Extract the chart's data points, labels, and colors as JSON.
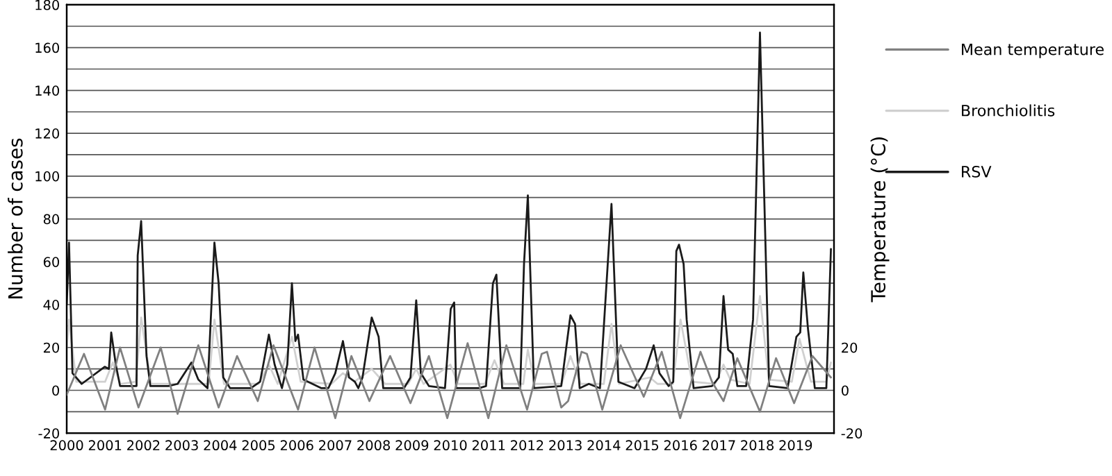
{
  "chart_data": {
    "type": "line",
    "ylabel": "Number of cases",
    "y2label": "Temperature (°C)",
    "xlim": [
      2000,
      2020
    ],
    "xticks": [
      2000,
      2001,
      2002,
      2003,
      2004,
      2005,
      2006,
      2007,
      2008,
      2009,
      2010,
      2011,
      2012,
      2013,
      2014,
      2015,
      2016,
      2017,
      2018,
      2019
    ],
    "ylim": [
      -20,
      180
    ],
    "yticks": [
      -20,
      0,
      20,
      40,
      60,
      80,
      100,
      120,
      140,
      160,
      180
    ],
    "y2lim": [
      -20,
      180
    ],
    "y2ticks": [
      -20,
      0,
      20
    ],
    "grid": "y",
    "legend": "right",
    "marker": "none",
    "line_style": "solid",
    "series": [
      {
        "name": "Mean temperature",
        "color": "#808080",
        "axis": "y2",
        "x": [
          2000.0,
          2000.45,
          2001.0,
          2001.39,
          2001.87,
          2002.45,
          2002.89,
          2003.43,
          2003.96,
          2004.44,
          2004.98,
          2005.39,
          2006.03,
          2006.46,
          2007.0,
          2007.42,
          2007.89,
          2008.43,
          2008.96,
          2009.44,
          2009.92,
          2010.45,
          2010.99,
          2011.46,
          2012.0,
          2012.38,
          2012.52,
          2012.89,
          2013.07,
          2013.42,
          2013.56,
          2013.96,
          2014.44,
          2015.04,
          2015.51,
          2015.99,
          2016.52,
          2016.82,
          2017.12,
          2017.48,
          2018.07,
          2018.49,
          2018.96,
          2019.44,
          2019.92
        ],
        "values": [
          -2,
          17,
          -9,
          20,
          -8,
          20,
          -11,
          21,
          -8,
          16,
          -5,
          21,
          -9,
          20,
          -13,
          16,
          -5,
          16,
          -6,
          16,
          -13,
          22,
          -13,
          21,
          -9,
          17,
          18,
          -8,
          -5,
          18,
          17,
          -9,
          21,
          -3,
          18,
          -13,
          18,
          4,
          -5,
          15,
          -10,
          15,
          -6,
          16,
          6
        ]
      },
      {
        "name": "Bronchiolitis",
        "color": "#d0d0d0",
        "x": [
          2000.0,
          2000.06,
          2000.25,
          2001.0,
          2001.2,
          2001.4,
          2001.8,
          2001.94,
          2002.2,
          2003.7,
          2003.85,
          2004.1,
          2005.0,
          2005.27,
          2005.5,
          2005.87,
          2006.1,
          2006.9,
          2007.2,
          2007.5,
          2007.95,
          2008.3,
          2008.9,
          2009.11,
          2009.3,
          2010.0,
          2010.2,
          2010.9,
          2011.15,
          2011.4,
          2011.9,
          2012.02,
          2012.2,
          2012.9,
          2013.13,
          2013.4,
          2014.0,
          2014.2,
          2014.4,
          2015.2,
          2015.4,
          2015.8,
          2016.0,
          2016.3,
          2016.9,
          2017.12,
          2017.3,
          2017.8,
          2018.07,
          2018.3,
          2018.9,
          2019.1,
          2019.4,
          2019.8,
          2019.92
        ],
        "values": [
          20,
          33,
          4,
          4,
          13,
          3,
          4,
          34,
          3,
          3,
          33,
          3,
          3,
          12,
          3,
          25,
          4,
          3,
          8,
          4,
          10,
          3,
          3,
          10,
          3,
          12,
          3,
          3,
          14,
          3,
          3,
          19,
          3,
          3,
          16,
          3,
          3,
          31,
          3,
          6,
          3,
          3,
          33,
          4,
          3,
          12,
          5,
          3,
          44,
          5,
          4,
          24,
          4,
          4,
          13
        ]
      },
      {
        "name": "RSV",
        "color": "#1a1a1a",
        "x": [
          2000.0,
          2000.06,
          2000.15,
          2000.39,
          2000.99,
          2001.1,
          2001.16,
          2001.28,
          2001.39,
          2001.82,
          2001.85,
          2001.94,
          2002.08,
          2002.18,
          2002.65,
          2002.89,
          2003.25,
          2003.43,
          2003.67,
          2003.85,
          2003.96,
          2004.08,
          2004.26,
          2004.8,
          2005.04,
          2005.27,
          2005.42,
          2005.61,
          2005.75,
          2005.87,
          2005.96,
          2006.03,
          2006.17,
          2006.64,
          2006.82,
          2007.0,
          2007.2,
          2007.36,
          2007.51,
          2007.6,
          2007.71,
          2007.95,
          2008.13,
          2008.25,
          2008.79,
          2008.96,
          2009.11,
          2009.23,
          2009.44,
          2009.86,
          2010.01,
          2010.1,
          2010.15,
          2010.75,
          2010.93,
          2011.11,
          2011.2,
          2011.35,
          2011.82,
          2011.92,
          2012.02,
          2012.18,
          2012.89,
          2013.13,
          2013.25,
          2013.37,
          2013.61,
          2013.9,
          2014.2,
          2014.38,
          2014.8,
          2015.1,
          2015.3,
          2015.45,
          2015.69,
          2015.81,
          2015.89,
          2015.96,
          2016.08,
          2016.16,
          2016.34,
          2016.82,
          2017.0,
          2017.12,
          2017.24,
          2017.36,
          2017.48,
          2017.71,
          2017.89,
          2018.07,
          2018.31,
          2018.79,
          2019.02,
          2019.12,
          2019.2,
          2019.32,
          2019.5,
          2019.8,
          2019.92
        ],
        "values": [
          40,
          69,
          8,
          3,
          11,
          10,
          27,
          12,
          2,
          2,
          63,
          79,
          16,
          2,
          2,
          3,
          13,
          5,
          1,
          69,
          50,
          6,
          1,
          1,
          4,
          26,
          12,
          1,
          12,
          50,
          23,
          26,
          5,
          1,
          1,
          8,
          23,
          6,
          4,
          1,
          6,
          34,
          25,
          1,
          1,
          6,
          42,
          8,
          2,
          1,
          38,
          41,
          1,
          1,
          2,
          50,
          54,
          1,
          1,
          59,
          91,
          1,
          2,
          35,
          31,
          1,
          3,
          1,
          87,
          4,
          1,
          10,
          21,
          8,
          2,
          4,
          65,
          68,
          59,
          33,
          1,
          2,
          6,
          44,
          19,
          17,
          2,
          2,
          33,
          167,
          2,
          1,
          25,
          27,
          55,
          29,
          1,
          1,
          66
        ]
      }
    ]
  }
}
